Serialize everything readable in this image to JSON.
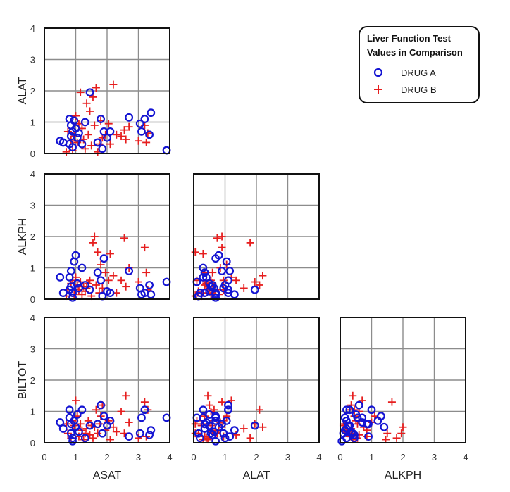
{
  "chart_data": {
    "type": "scatter",
    "variables": [
      "ASAT",
      "ALAT",
      "ALKPH",
      "BILTOT"
    ],
    "axis_range": [
      0,
      4
    ],
    "ticks": [
      0,
      1,
      2,
      3,
      4
    ],
    "grid": true,
    "legend": {
      "title_line1": "Liver Function Test",
      "title_line2": "Values in Comparison",
      "placement": "top-right",
      "items": [
        {
          "label": "DRUG A",
          "marker": "circle",
          "color": "#1414d2"
        },
        {
          "label": "DRUG B",
          "marker": "plus",
          "color": "#e61e1e"
        }
      ]
    },
    "series": [
      {
        "name": "DRUG A",
        "points": [
          [
            0.5,
            0.4,
            0.7,
            0.65
          ],
          [
            0.6,
            0.35,
            0.2,
            0.45
          ],
          [
            0.8,
            1.1,
            0.3,
            1.05
          ],
          [
            0.8,
            0.3,
            0.7,
            0.8
          ],
          [
            0.85,
            0.9,
            0.9,
            0.6
          ],
          [
            0.9,
            0.7,
            0.05,
            0.05
          ],
          [
            0.95,
            1.05,
            1.2,
            0.7
          ],
          [
            0.85,
            0.55,
            0.4,
            0.3
          ],
          [
            0.9,
            0.2,
            0.2,
            0.15
          ],
          [
            1.0,
            0.8,
            1.4,
            0.5
          ],
          [
            1.05,
            0.5,
            0.5,
            0.9
          ],
          [
            1.1,
            0.65,
            0.35,
            0.35
          ],
          [
            1.2,
            0.3,
            1.0,
            1.05
          ],
          [
            1.3,
            1.0,
            0.45,
            0.15
          ],
          [
            1.45,
            1.95,
            0.3,
            0.55
          ],
          [
            1.7,
            0.35,
            0.85,
            0.6
          ],
          [
            1.8,
            1.1,
            0.6,
            1.2
          ],
          [
            1.85,
            0.15,
            0.1,
            0.3
          ],
          [
            1.9,
            0.7,
            1.3,
            0.85
          ],
          [
            2.0,
            0.5,
            0.25,
            0.55
          ],
          [
            2.1,
            0.7,
            0.2,
            0.7
          ],
          [
            2.7,
            1.15,
            0.9,
            0.2
          ],
          [
            3.05,
            0.95,
            0.35,
            0.3
          ],
          [
            3.1,
            0.7,
            0.15,
            0.8
          ],
          [
            3.2,
            1.1,
            0.2,
            1.05
          ],
          [
            3.35,
            0.6,
            0.45,
            0.25
          ],
          [
            3.4,
            1.3,
            0.15,
            0.4
          ],
          [
            3.9,
            0.1,
            0.55,
            0.8
          ]
        ]
      },
      {
        "name": "DRUG B",
        "points": [
          [
            0.7,
            0.05,
            0.1,
            0.6
          ],
          [
            0.75,
            0.7,
            0.3,
            0.3
          ],
          [
            0.85,
            0.4,
            0.5,
            0.15
          ],
          [
            0.9,
            0.1,
            0.6,
            0.7
          ],
          [
            0.95,
            0.55,
            0.15,
            0.55
          ],
          [
            1.0,
            1.2,
            0.7,
            1.35
          ],
          [
            1.05,
            0.35,
            0.45,
            0.85
          ],
          [
            1.1,
            0.95,
            0.3,
            0.2
          ],
          [
            1.15,
            1.95,
            0.55,
            0.6
          ],
          [
            1.2,
            0.8,
            0.15,
            0.4
          ],
          [
            1.25,
            0.45,
            0.4,
            0.1
          ],
          [
            1.3,
            0.15,
            0.25,
            0.3
          ],
          [
            1.35,
            1.6,
            0.35,
            0.45
          ],
          [
            1.4,
            0.6,
            0.5,
            0.7
          ],
          [
            1.45,
            1.35,
            0.6,
            0.25
          ],
          [
            1.5,
            0.25,
            0.1,
            0.55
          ],
          [
            1.55,
            1.8,
            1.8,
            0.15
          ],
          [
            1.6,
            0.9,
            2.0,
            0.5
          ],
          [
            1.65,
            2.1,
            0.45,
            1.05
          ],
          [
            1.7,
            0.05,
            1.5,
            0.3
          ],
          [
            1.75,
            0.3,
            0.2,
            0.6
          ],
          [
            1.8,
            1.05,
            1.1,
            0.85
          ],
          [
            1.85,
            0.5,
            0.35,
            1.2
          ],
          [
            1.95,
            0.6,
            0.85,
            0.4
          ],
          [
            2.05,
            0.95,
            0.6,
            0.7
          ],
          [
            2.1,
            0.3,
            1.45,
            0.1
          ],
          [
            2.2,
            2.2,
            0.75,
            0.5
          ],
          [
            2.3,
            0.6,
            0.2,
            0.35
          ],
          [
            2.45,
            0.55,
            0.6,
            1.0
          ],
          [
            2.55,
            0.75,
            1.95,
            0.3
          ],
          [
            2.6,
            0.45,
            0.4,
            1.5
          ],
          [
            2.7,
            0.85,
            1.0,
            0.65
          ],
          [
            3.0,
            0.4,
            0.55,
            0.15
          ],
          [
            3.2,
            0.9,
            1.65,
            1.3
          ],
          [
            3.25,
            0.35,
            0.85,
            0.2
          ],
          [
            3.3,
            0.65,
            0.3,
            1.05
          ]
        ]
      }
    ]
  }
}
